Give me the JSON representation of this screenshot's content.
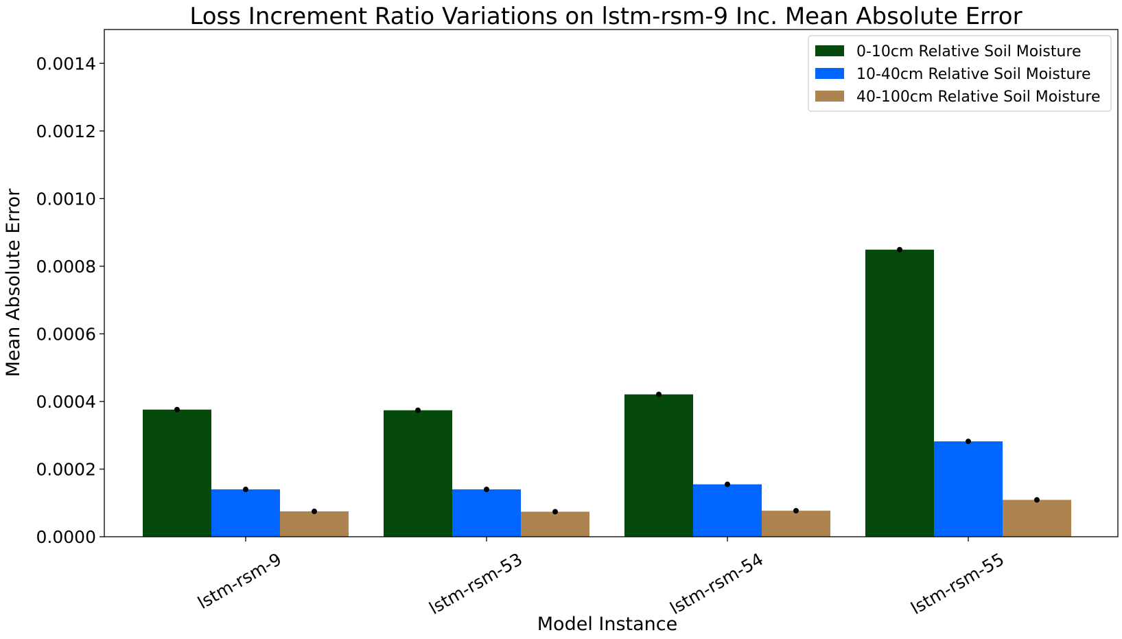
{
  "chart_data": {
    "type": "bar",
    "title": "Loss Increment Ratio Variations on lstm-rsm-9 Inc. Mean Absolute Error",
    "xlabel": "Model Instance",
    "ylabel": "Mean Absolute Error",
    "categories": [
      "lstm-rsm-9",
      "lstm-rsm-53",
      "lstm-rsm-54",
      "lstm-rsm-55"
    ],
    "ylim": [
      0,
      0.0015
    ],
    "yticks": [
      "0.0000",
      "0.0002",
      "0.0004",
      "0.0006",
      "0.0008",
      "0.0010",
      "0.0012",
      "0.0014"
    ],
    "ytick_values": [
      0,
      0.0002,
      0.0004,
      0.0006,
      0.0008,
      0.001,
      0.0012,
      0.0014
    ],
    "legend_position": "top-right",
    "grid": false,
    "series": [
      {
        "name": "0-10cm Relative Soil Moisture",
        "color": "#054a0b",
        "values": [
          0.000376,
          0.000374,
          0.000421,
          0.000849
        ]
      },
      {
        "name": "10-40cm Relative Soil Moisture",
        "color": "#0066ff",
        "values": [
          0.00014,
          0.00014,
          0.000155,
          0.000282
        ]
      },
      {
        "name": "40-100cm Relative Soil Moisture",
        "color": "#ad8350",
        "values": [
          7.5e-05,
          7.4e-05,
          7.7e-05,
          0.000109
        ]
      }
    ]
  }
}
